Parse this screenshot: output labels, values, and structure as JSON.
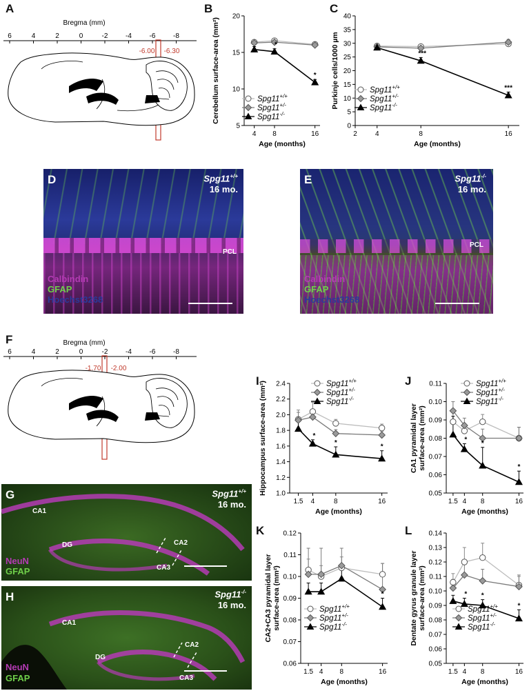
{
  "panels": {
    "A": "A",
    "B": "B",
    "C": "C",
    "D": "D",
    "E": "E",
    "F": "F",
    "G": "G",
    "H": "H",
    "I": "I",
    "J": "J",
    "K": "K",
    "L": "L"
  },
  "bregma": {
    "title": "Bregma (mm)",
    "ticks": [
      "6",
      "4",
      "2",
      "0",
      "-2",
      "-4",
      "-6",
      "-8"
    ],
    "A_marks": [
      "-6.00",
      "-6.30"
    ],
    "F_marks": [
      "-1.70",
      "-2.00"
    ]
  },
  "legend": {
    "wt": {
      "base": "Spg11",
      "sup": "+/+"
    },
    "het": {
      "base": "Spg11",
      "sup": "+/-"
    },
    "ko": {
      "base": "Spg11",
      "sup": "-/-"
    }
  },
  "micro": {
    "D": {
      "genotype": "Spg11",
      "sup": "+/+",
      "age": "16 mo.",
      "pcl": "PCL",
      "stains": [
        "Calbindin",
        "GFAP",
        "Hoechst3268"
      ]
    },
    "E": {
      "genotype": "Spg11",
      "sup": "-/-",
      "age": "16 mo.",
      "pcl": "PCL",
      "stains": [
        "Calbindin",
        "GFAP",
        "Hoechst3268"
      ]
    },
    "G": {
      "genotype": "Spg11",
      "sup": "+/+",
      "age": "16 mo.",
      "regions": [
        "CA1",
        "CA2",
        "DG",
        "CA3"
      ],
      "stains": [
        "NeuN",
        "GFAP"
      ]
    },
    "H": {
      "genotype": "Spg11",
      "sup": "-/-",
      "age": "16 mo.",
      "regions": [
        "CA1",
        "CA2",
        "DG",
        "CA3"
      ],
      "stains": [
        "NeuN",
        "GFAP"
      ]
    }
  },
  "colors": {
    "wt": "#ffffff",
    "het": "#9a9a9a",
    "ko": "#000000",
    "magenta": "#b43bb4",
    "green": "#6fcf4a",
    "blue": "#2b3a9a",
    "red": "#c0392b"
  },
  "chart_data": [
    {
      "id": "B",
      "type": "line",
      "x": [
        4,
        8,
        16
      ],
      "xticks": [
        "4",
        "8",
        "16"
      ],
      "xlim": [
        2,
        17
      ],
      "ylabel": "Cerebellum surface-area (mm²)",
      "xlabel": "Age (months)",
      "ylim": [
        5,
        20
      ],
      "yticks": [
        5,
        10,
        15,
        20
      ],
      "series": [
        {
          "name": "Spg11+/+",
          "values": [
            16.4,
            16.6,
            16.1
          ],
          "err": [
            0.3,
            0.3,
            0.3
          ],
          "sig": [
            "",
            "",
            ""
          ]
        },
        {
          "name": "Spg11+/-",
          "values": [
            16.3,
            16.4,
            16.0
          ],
          "err": [
            0.3,
            0.3,
            0.3
          ],
          "sig": [
            "",
            "",
            ""
          ]
        },
        {
          "name": "Spg11-/-",
          "values": [
            15.4,
            15.1,
            10.9
          ],
          "err": [
            0.4,
            0.4,
            0.4
          ],
          "sig": [
            "",
            "*",
            "*"
          ]
        }
      ]
    },
    {
      "id": "C",
      "type": "line",
      "x": [
        4,
        8,
        16
      ],
      "xticks": [
        "2",
        "4",
        "8",
        "16"
      ],
      "xtickvals": [
        2,
        4,
        8,
        16
      ],
      "xlim": [
        2,
        17
      ],
      "ylabel": "Purkinje cells/1000 µm",
      "xlabel": "Age (months)",
      "ylim": [
        0,
        40
      ],
      "yticks": [
        0,
        5,
        10,
        15,
        20,
        25,
        30,
        35,
        40
      ],
      "series": [
        {
          "name": "Spg11+/+",
          "values": [
            29.0,
            28.8,
            29.8
          ],
          "err": [
            0.6,
            0.8,
            1.2
          ],
          "sig": [
            "",
            "",
            ""
          ]
        },
        {
          "name": "Spg11+/-",
          "values": [
            28.7,
            28.2,
            30.4
          ],
          "err": [
            0.6,
            0.8,
            1.0
          ],
          "sig": [
            "",
            "",
            ""
          ]
        },
        {
          "name": "Spg11-/-",
          "values": [
            28.4,
            23.6,
            11.0
          ],
          "err": [
            0.8,
            1.2,
            1.2
          ],
          "sig": [
            "",
            "***",
            "***"
          ]
        }
      ]
    },
    {
      "id": "I",
      "type": "line",
      "x": [
        1.5,
        4,
        8,
        16
      ],
      "xticks": [
        "1.5",
        "4",
        "8",
        "16"
      ],
      "xlim": [
        0,
        17
      ],
      "ylabel": "Hippocampus surface-area (mm²)",
      "xlabel": "Age (months)",
      "ylim": [
        1.0,
        2.4
      ],
      "yticks": [
        1.0,
        1.2,
        1.4,
        1.6,
        1.8,
        2.0,
        2.2,
        2.4
      ],
      "series": [
        {
          "name": "Spg11+/+",
          "values": [
            1.94,
            2.04,
            1.89,
            1.83
          ],
          "err": [
            0.12,
            0.12,
            0.05,
            0.05
          ],
          "sig": [
            "",
            "",
            "",
            ""
          ]
        },
        {
          "name": "Spg11+/-",
          "values": [
            1.93,
            1.97,
            1.76,
            1.74
          ],
          "err": [
            0.1,
            0.1,
            0.05,
            0.05
          ],
          "sig": [
            "",
            "",
            "",
            ""
          ]
        },
        {
          "name": "Spg11-/-",
          "values": [
            1.82,
            1.63,
            1.49,
            1.44
          ],
          "err": [
            0.15,
            0.05,
            0.1,
            0.1
          ],
          "sig": [
            "",
            "*",
            "*",
            "*"
          ]
        }
      ]
    },
    {
      "id": "J",
      "type": "line",
      "x": [
        1.5,
        4,
        8,
        16
      ],
      "xticks": [
        "1.5",
        "4",
        "8",
        "16"
      ],
      "xlim": [
        0,
        17
      ],
      "ylabel": "CA1 pyramidal layer\nsurface-area (mm²)",
      "xlabel": "Age (months)",
      "ylim": [
        0.05,
        0.11
      ],
      "yticks": [
        0.05,
        0.06,
        0.07,
        0.08,
        0.09,
        0.1,
        0.11
      ],
      "series": [
        {
          "name": "Spg11+/+",
          "values": [
            0.089,
            0.084,
            0.089,
            0.08
          ],
          "err": [
            0.006,
            0.004,
            0.004,
            0.006
          ],
          "sig": [
            "",
            "",
            "",
            ""
          ]
        },
        {
          "name": "Spg11+/-",
          "values": [
            0.095,
            0.087,
            0.08,
            0.08
          ],
          "err": [
            0.005,
            0.004,
            0.005,
            0.006
          ],
          "sig": [
            "",
            "",
            "",
            ""
          ]
        },
        {
          "name": "Spg11-/-",
          "values": [
            0.082,
            0.074,
            0.065,
            0.056
          ],
          "err": [
            0.01,
            0.003,
            0.01,
            0.006
          ],
          "sig": [
            "",
            "*",
            "*",
            "*"
          ]
        }
      ]
    },
    {
      "id": "K",
      "type": "line",
      "x": [
        1.5,
        4,
        8,
        16
      ],
      "xticks": [
        "1.5",
        "4",
        "8",
        "16"
      ],
      "xlim": [
        0,
        17
      ],
      "ylabel": "CA2+CA3 pyramidal layer\nsurface-area (mm²)",
      "xlabel": "Age (months)",
      "ylim": [
        0.06,
        0.12
      ],
      "yticks": [
        0.06,
        0.07,
        0.08,
        0.09,
        0.1,
        0.11,
        0.12
      ],
      "series": [
        {
          "name": "Spg11+/+",
          "values": [
            0.103,
            0.1,
            0.104,
            0.101
          ],
          "err": [
            0.005,
            0.005,
            0.005,
            0.005
          ],
          "sig": [
            "",
            "",
            "",
            ""
          ]
        },
        {
          "name": "Spg11+/-",
          "values": [
            0.101,
            0.101,
            0.105,
            0.094
          ],
          "err": [
            0.012,
            0.012,
            0.008,
            0.012
          ],
          "sig": [
            "",
            "",
            "",
            ""
          ]
        },
        {
          "name": "Spg11-/-",
          "values": [
            0.093,
            0.093,
            0.099,
            0.086
          ],
          "err": [
            0.004,
            0.004,
            0.004,
            0.004
          ],
          "sig": [
            "",
            "",
            "",
            "*"
          ]
        }
      ]
    },
    {
      "id": "L",
      "type": "line",
      "x": [
        1.5,
        4,
        8,
        16
      ],
      "xticks": [
        "1.5",
        "4",
        "8",
        "16"
      ],
      "xlim": [
        0,
        17
      ],
      "ylabel": "Dentate gyrus granule layer\nsurface-area (mm²)",
      "xlabel": "Age (months)",
      "ylim": [
        0.05,
        0.14
      ],
      "yticks": [
        0.05,
        0.06,
        0.07,
        0.08,
        0.09,
        0.1,
        0.11,
        0.12,
        0.13,
        0.14
      ],
      "series": [
        {
          "name": "Spg11+/+",
          "values": [
            0.106,
            0.12,
            0.123,
            0.104
          ],
          "err": [
            0.006,
            0.01,
            0.01,
            0.006
          ],
          "sig": [
            "",
            "",
            "",
            ""
          ]
        },
        {
          "name": "Spg11+/-",
          "values": [
            0.102,
            0.111,
            0.107,
            0.103
          ],
          "err": [
            0.006,
            0.008,
            0.008,
            0.008
          ],
          "sig": [
            "",
            "",
            "",
            ""
          ]
        },
        {
          "name": "Spg11-/-",
          "values": [
            0.093,
            0.091,
            0.09,
            0.081
          ],
          "err": [
            0.004,
            0.004,
            0.004,
            0.006
          ],
          "sig": [
            "",
            "*",
            "*",
            "*"
          ]
        }
      ]
    }
  ]
}
